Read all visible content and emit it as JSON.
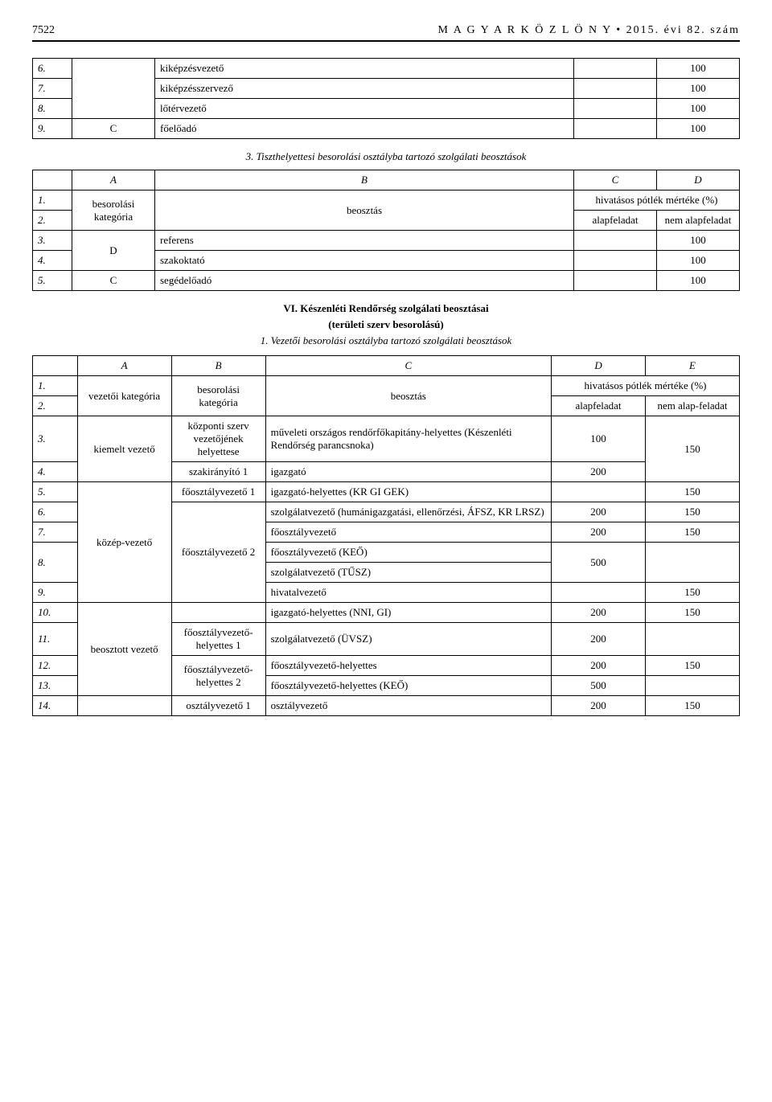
{
  "header": {
    "page_number": "7522",
    "title": "M A G Y A R   K Ö Z L Ö N Y  •  2015. évi 82. szám"
  },
  "table1": {
    "rows": [
      {
        "n": "6.",
        "a": "",
        "b": "kiképzésvezető",
        "c": "",
        "d": "100"
      },
      {
        "n": "7.",
        "a": "",
        "b": "kiképzésszervező",
        "c": "",
        "d": "100"
      },
      {
        "n": "8.",
        "a": "",
        "b": "lőtérvezető",
        "c": "",
        "d": "100"
      },
      {
        "n": "9.",
        "a": "C",
        "b": "főelőadó",
        "c": "",
        "d": "100"
      }
    ]
  },
  "section3_title": "3. Tiszthelyettesi besorolási osztályba tartozó szolgálati beosztások",
  "table2": {
    "head": {
      "A": "A",
      "B": "B",
      "C": "C",
      "D": "D",
      "col1": "besorolási kategória",
      "col2": "beosztás",
      "merge_cd": "hivatásos pótlék mértéke (%)",
      "col3": "alapfeladat",
      "col4": "nem alapfeladat"
    },
    "rows": [
      {
        "n": "3.",
        "a": "D",
        "b": "referens",
        "c": "",
        "d": "100"
      },
      {
        "n": "4.",
        "a": "",
        "b": "szakoktató",
        "c": "",
        "d": "100"
      },
      {
        "n": "5.",
        "a": "C",
        "b": "segédelőadó",
        "c": "",
        "d": "100"
      }
    ]
  },
  "sectionVI": {
    "title": "VI. Készenléti Rendőrség szolgálati beosztásai",
    "sub": "(területi szerv besorolású)",
    "sub2": "1. Vezetői besorolási osztályba tartozó szolgálati beosztások"
  },
  "table3": {
    "head": {
      "A": "A",
      "B": "B",
      "C": "C",
      "D": "D",
      "E": "E",
      "col1": "vezetői kategória",
      "col2": "besorolási kategória",
      "col3": "beosztás",
      "merge_de": "hivatásos pótlék mértéke (%)",
      "col4": "alapfeladat",
      "col5": "nem alap-feladat"
    },
    "rows": [
      {
        "n": "3.",
        "a": "kiemelt vezető",
        "b": "központi szerv vezetőjének helyettese",
        "c": "műveleti országos rendőrfőkapitány-helyettes (Készenléti Rendőrség parancsnoka)",
        "d": "100",
        "e": ""
      },
      {
        "n": "4.",
        "a": "",
        "b": "szakirányító 1",
        "c": "igazgató",
        "d": "200",
        "e": "150"
      },
      {
        "n": "5.",
        "a": "",
        "b": "főosztályvezető 1",
        "c": "igazgató-helyettes (KR GI GEK)",
        "d": "",
        "e": "150"
      },
      {
        "n": "6.",
        "a": "közép-vezető",
        "b": "",
        "c": "szolgálatvezető (humánigazgatási, ellenőrzési, ÁFSZ, KR LRSZ)",
        "d": "200",
        "e": "150"
      },
      {
        "n": "7.",
        "a": "",
        "b": "",
        "c": "főosztályvezető",
        "d": "200",
        "e": "150"
      },
      {
        "n": "8.",
        "a": "",
        "b": "főosztályvezető 2",
        "c": "főosztályvezető (KEŐ)",
        "d": "500",
        "e": ""
      },
      {
        "n": "",
        "a": "",
        "b": "",
        "c": "szolgálatvezető (TŰSZ)",
        "d": "",
        "e": ""
      },
      {
        "n": "9.",
        "a": "",
        "b": "",
        "c": "hivatalvezető",
        "d": "",
        "e": "150"
      },
      {
        "n": "10.",
        "a": "",
        "b": "",
        "c": "igazgató-helyettes (NNI, GI)",
        "d": "200",
        "e": "150"
      },
      {
        "n": "11.",
        "a": "",
        "b": "főosztályvezető-helyettes 1",
        "c": "szolgálatvezető (ÜVSZ)",
        "d": "200",
        "e": ""
      },
      {
        "n": "12.",
        "a": "beosztott vezető",
        "b": "főosztályvezető-helyettes 2",
        "c": "főosztályvezető-helyettes",
        "d": "200",
        "e": "150"
      },
      {
        "n": "13.",
        "a": "",
        "b": "",
        "c": "főosztályvezető-helyettes (KEŐ)",
        "d": "500",
        "e": ""
      },
      {
        "n": "14.",
        "a": "",
        "b": "osztályvezető 1",
        "c": "osztályvezető",
        "d": "200",
        "e": "150"
      }
    ]
  }
}
